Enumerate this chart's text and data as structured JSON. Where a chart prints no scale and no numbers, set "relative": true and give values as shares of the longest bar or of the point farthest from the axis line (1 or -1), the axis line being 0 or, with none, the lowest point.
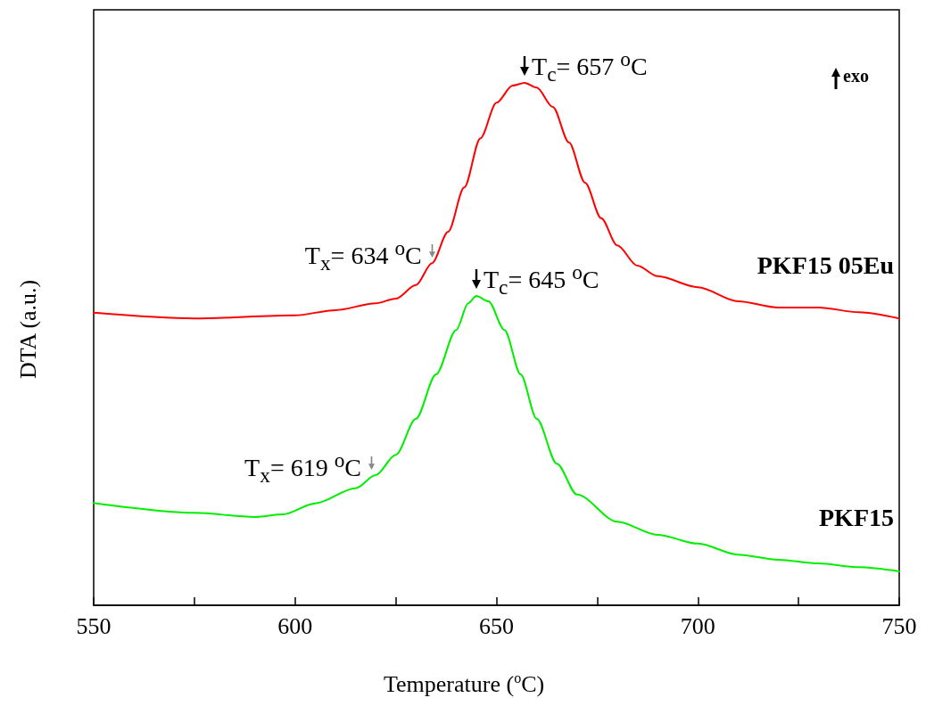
{
  "chart_data": {
    "type": "line",
    "relative": true,
    "xlabel": "Temperature ($^{o}$C)",
    "ylabel": "DTA (a.u.)",
    "xlim": [
      550,
      750
    ],
    "xticks": [
      550,
      {
        "value": 575,
        "label": null
      },
      600,
      {
        "value": 625,
        "label": null
      },
      650,
      {
        "value": 675,
        "label": null
      },
      700,
      {
        "value": 725,
        "label": null
      },
      750
    ],
    "grid": false,
    "legend": false,
    "marker": "none",
    "line_style": "solid",
    "tick_labels": "x",
    "annotations": [
      {
        "text": "T$_{c}$= 657 $^{o}$C",
        "x": 657,
        "y": 1
      },
      {
        "text": "T$_{x}$= 634 $^{o}$C",
        "x": 634,
        "y": 0.655
      },
      {
        "text": "T$_{c}$= 645 $^{o}$C",
        "x": 645,
        "y": 0.592
      },
      {
        "text": "T$_{x}$= 619 $^{o}$C",
        "x": 619,
        "y": 0.249
      },
      "exo"
    ],
    "series": [
      {
        "name": "PKF15 05Eu",
        "color": "#ff0000",
        "x": [
          550,
          575,
          600,
          610,
          620,
          625,
          630,
          634,
          638,
          642,
          646,
          650,
          654,
          657,
          660,
          664,
          668,
          672,
          676,
          680,
          685,
          690,
          700,
          710,
          720,
          730,
          740,
          750
        ],
        "values": [
          0.56,
          0.549,
          0.555,
          0.565,
          0.578,
          0.587,
          0.613,
          0.655,
          0.715,
          0.8,
          0.894,
          0.962,
          0.995,
          1,
          0.991,
          0.954,
          0.886,
          0.809,
          0.741,
          0.689,
          0.65,
          0.63,
          0.609,
          0.582,
          0.57,
          0.57,
          0.561,
          0.549
        ]
      },
      {
        "name": "PKF15",
        "color": "#00ee00",
        "x": [
          550,
          575,
          590,
          597,
          605,
          615,
          620,
          625,
          630,
          635,
          640,
          643,
          645,
          648,
          652,
          656,
          660,
          665,
          670,
          680,
          690,
          700,
          710,
          720,
          730,
          740,
          750
        ],
        "values": [
          0.196,
          0.177,
          0.169,
          0.174,
          0.195,
          0.224,
          0.249,
          0.288,
          0.357,
          0.442,
          0.527,
          0.578,
          0.592,
          0.582,
          0.527,
          0.442,
          0.357,
          0.271,
          0.212,
          0.16,
          0.135,
          0.118,
          0.097,
          0.087,
          0.08,
          0.073,
          0.065
        ]
      }
    ]
  }
}
